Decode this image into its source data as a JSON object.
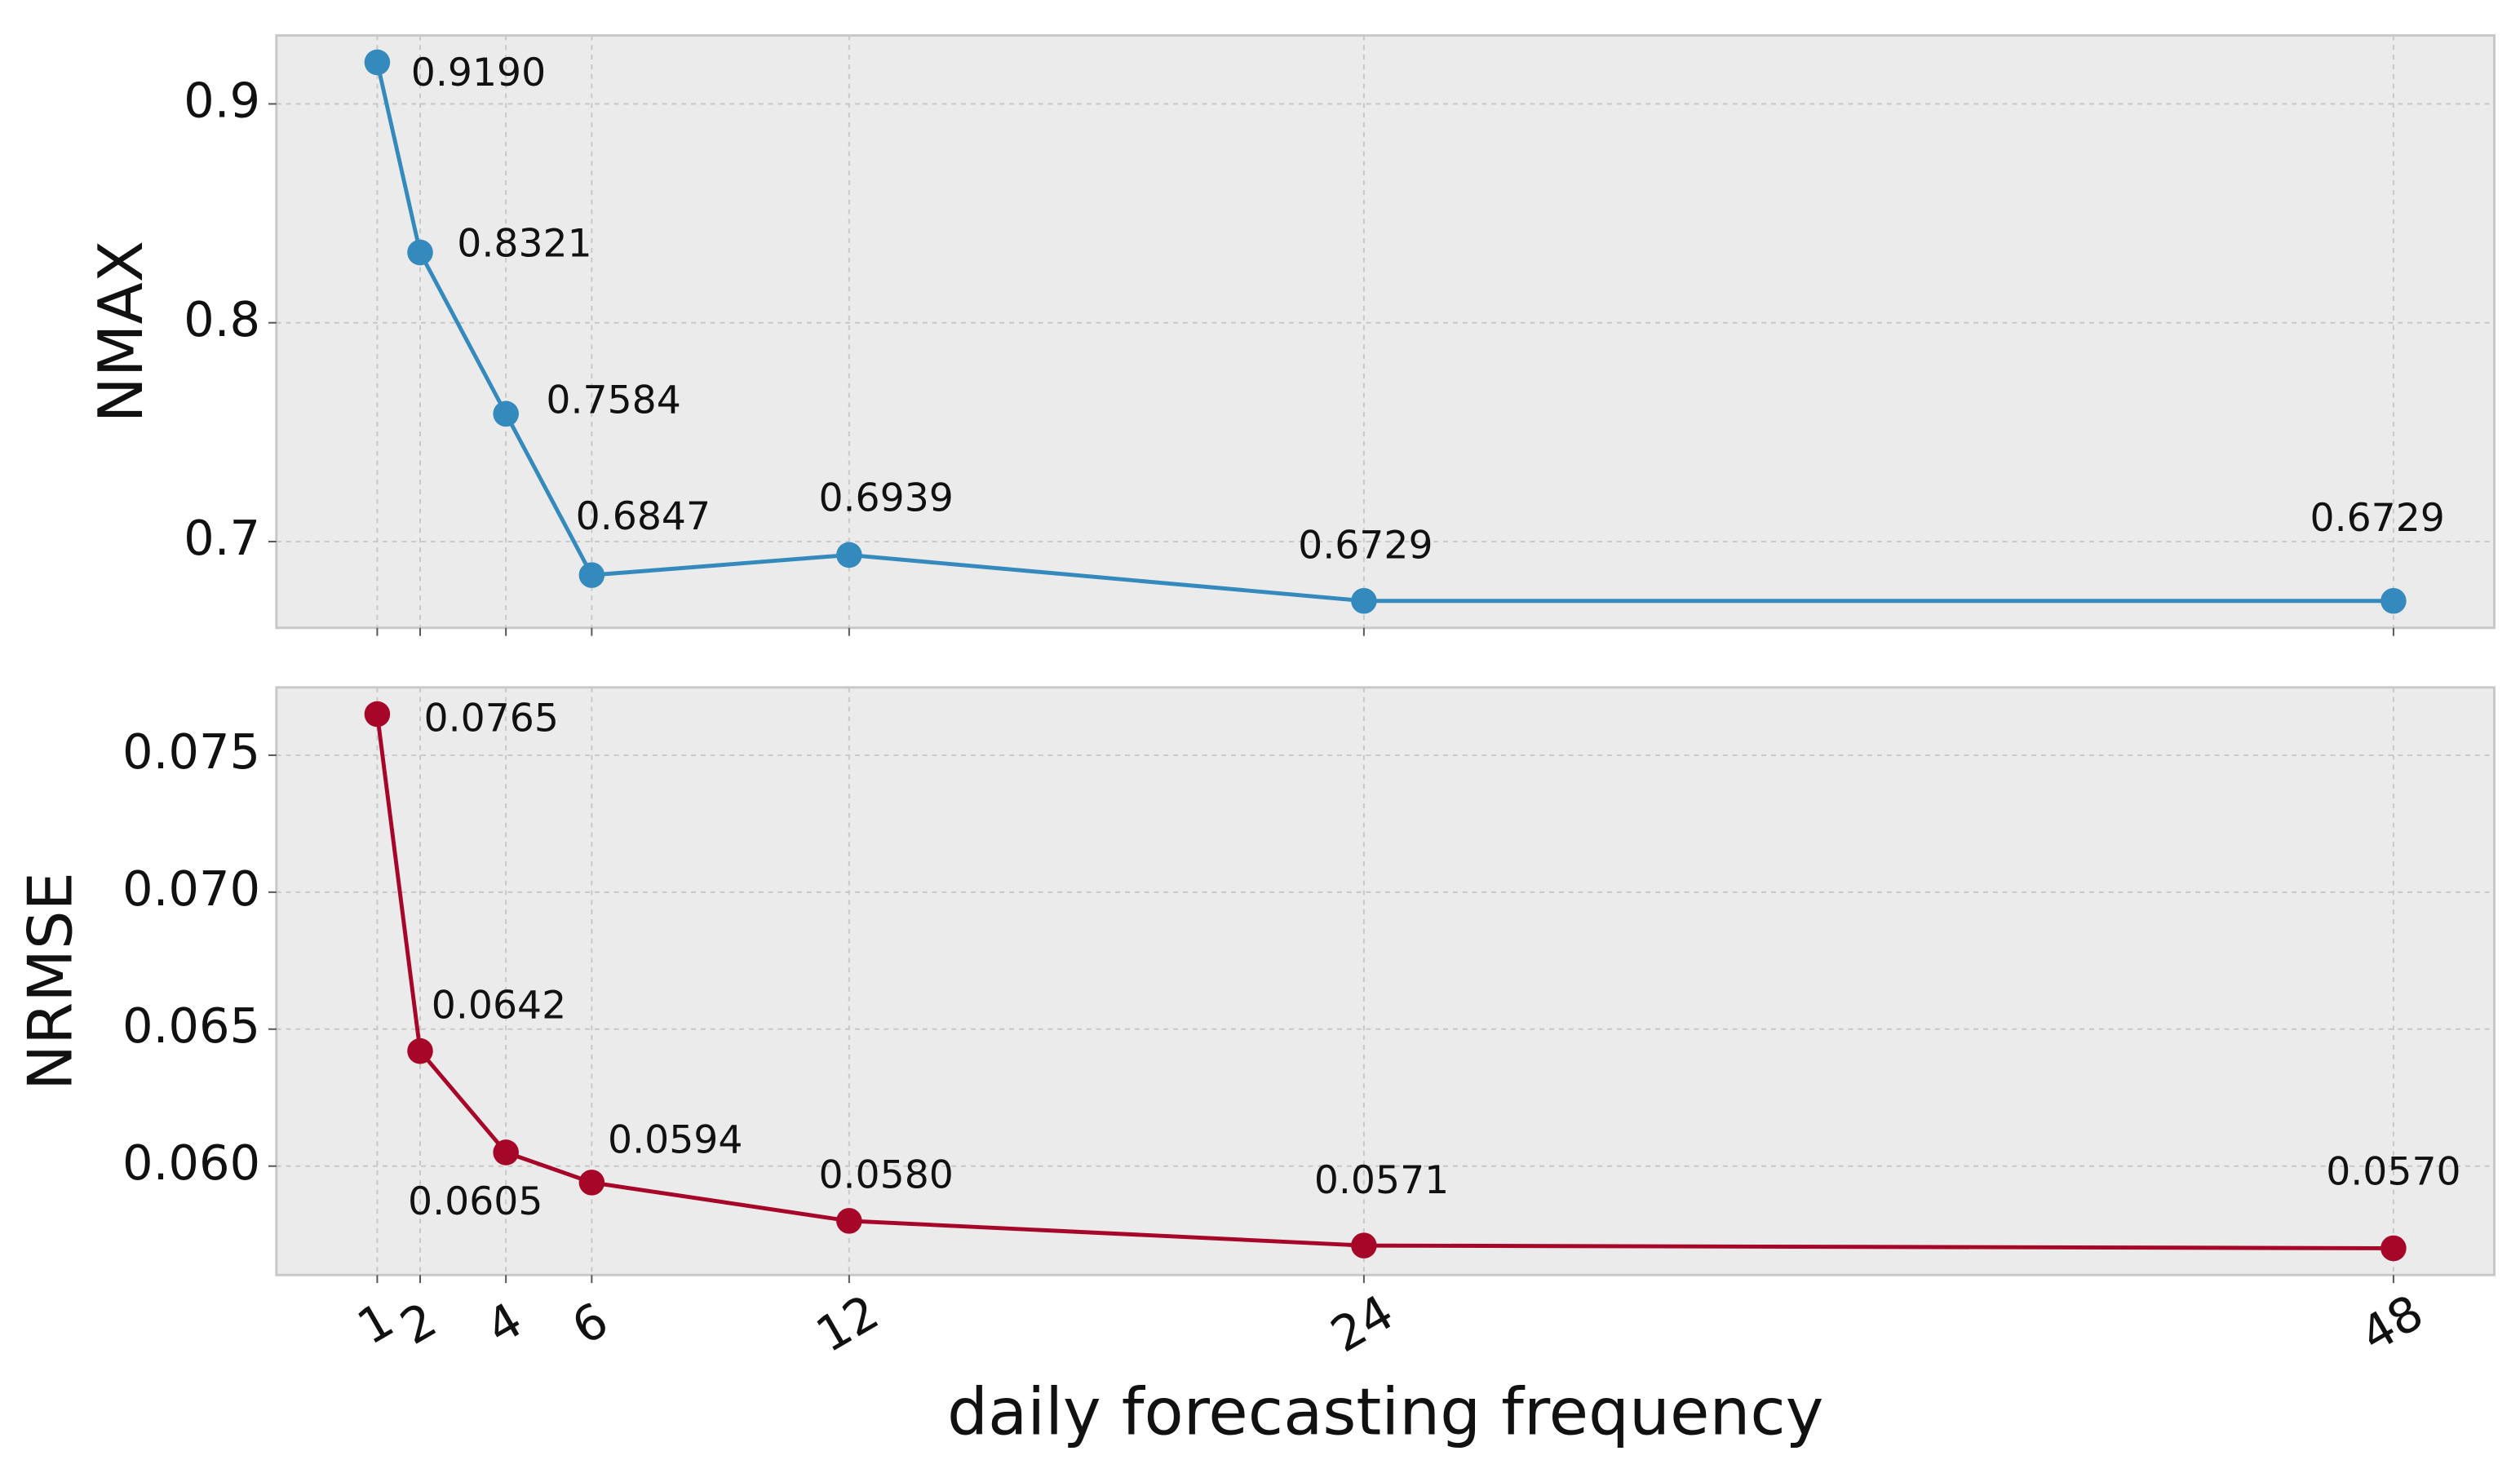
{
  "chart_data": [
    {
      "type": "line",
      "ylabel": "NMAX",
      "color": "#348abd",
      "x": [
        1,
        2,
        4,
        6,
        12,
        24,
        48
      ],
      "values": [
        0.919,
        0.8321,
        0.7584,
        0.6847,
        0.6939,
        0.6729,
        0.6729
      ],
      "value_labels": [
        "0.9190",
        "0.8321",
        "0.7584",
        "0.6847",
        "0.6939",
        "0.6729",
        "0.6729"
      ],
      "xlim": [
        -1.35,
        50.35
      ],
      "xticks": [
        1,
        2,
        4,
        6,
        12,
        24,
        48
      ],
      "ylim": [
        0.6606,
        0.9313
      ],
      "yticks": [
        0.7,
        0.8,
        0.9
      ],
      "grid": true
    },
    {
      "type": "line",
      "ylabel": "NRMSE",
      "xlabel": "daily forecasting frequency",
      "color": "#a60628",
      "x": [
        1,
        2,
        4,
        6,
        12,
        24,
        48
      ],
      "values": [
        0.0765,
        0.0642,
        0.0605,
        0.0594,
        0.058,
        0.0571,
        0.057
      ],
      "value_labels": [
        "0.0765",
        "0.0642",
        "0.0605",
        "0.0594",
        "0.0580",
        "0.0571",
        "0.0570"
      ],
      "xlim": [
        -1.35,
        50.35
      ],
      "xticks": [
        1,
        2,
        4,
        6,
        12,
        24,
        48
      ],
      "ylim": [
        0.056025,
        0.077475
      ],
      "yticks": [
        {
          "value": 0.06,
          "label": "0.060"
        },
        0.065,
        {
          "value": 0.07,
          "label": "0.070"
        },
        0.075
      ],
      "grid": true
    }
  ]
}
